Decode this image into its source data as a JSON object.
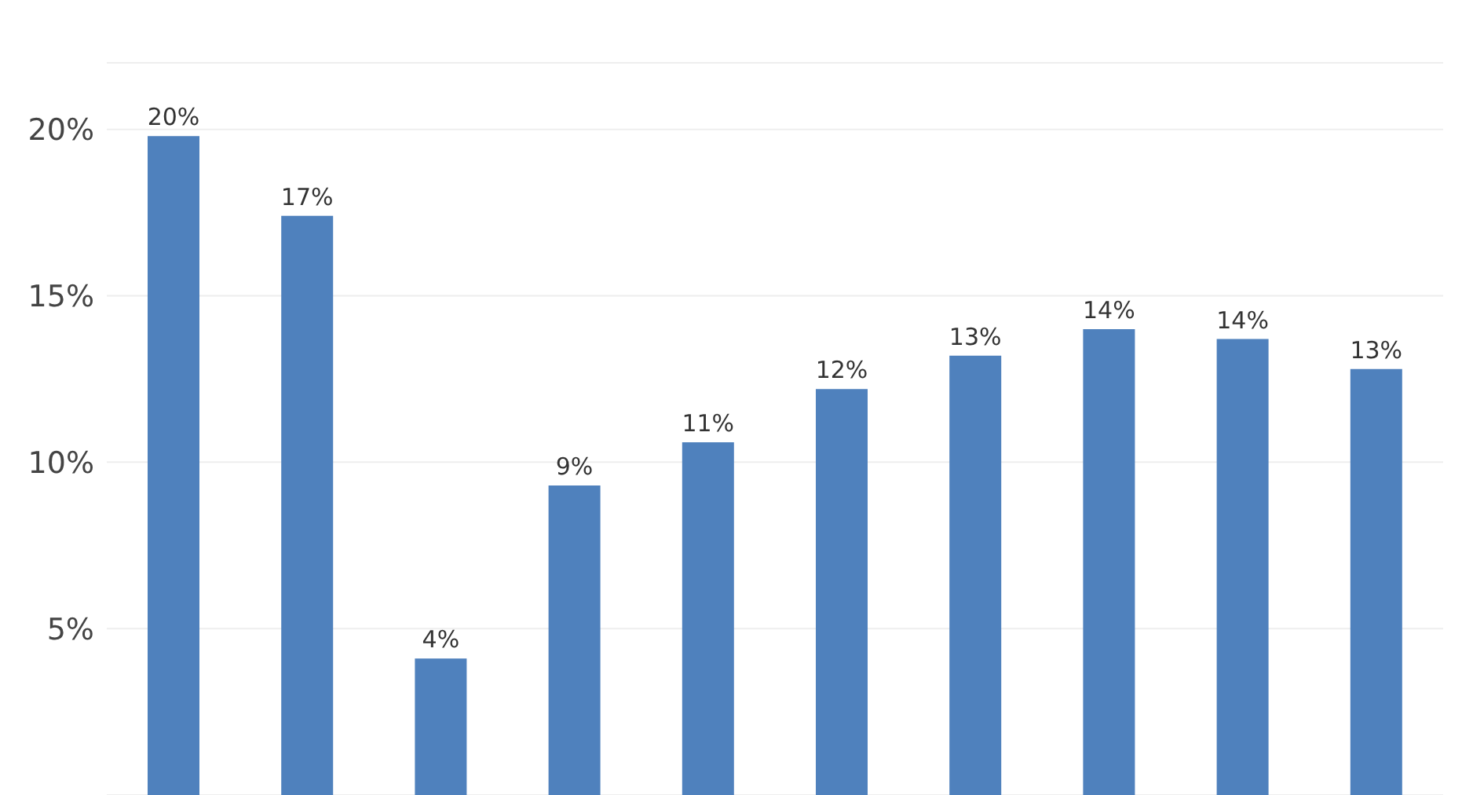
{
  "chart_data": {
    "type": "bar",
    "categories": [
      null,
      null,
      null,
      null,
      null,
      null,
      null,
      null,
      null,
      null
    ],
    "values": [
      19.8,
      17.4,
      4.1,
      9.3,
      10.6,
      12.2,
      13.2,
      14.0,
      13.7,
      12.8
    ],
    "value_labels": [
      "20%",
      "17%",
      "4%",
      "9%",
      "11%",
      "12%",
      "13%",
      "14%",
      "14%",
      "13%"
    ],
    "color": "#4f81bd",
    "ylim": [
      0,
      22
    ],
    "yticks": [
      {
        "value": 5,
        "label": "5%"
      },
      {
        "value": 10,
        "label": "10%"
      },
      {
        "value": 15,
        "label": "15%"
      },
      {
        "value": 20,
        "label": "20%"
      }
    ],
    "grid": "y",
    "tick_labels": "y"
  }
}
